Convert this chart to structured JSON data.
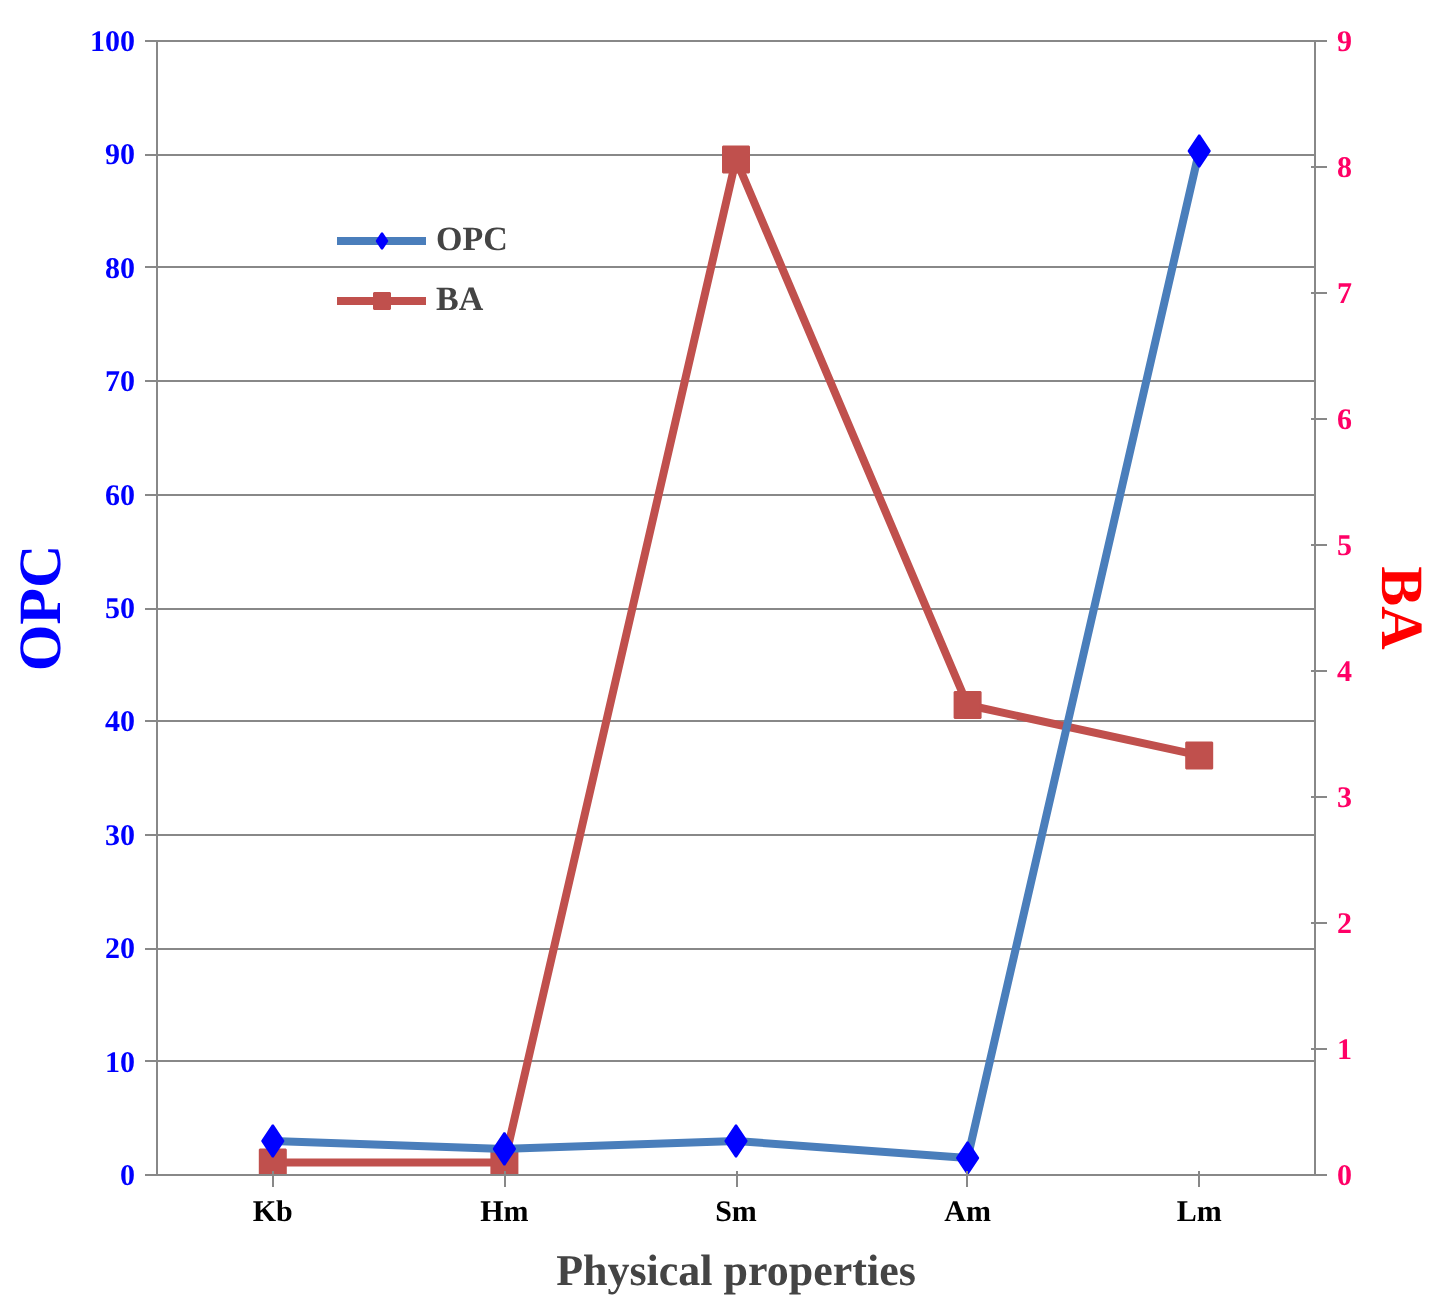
{
  "chart_data": {
    "type": "line",
    "xlabel": "Physical properties",
    "ylabel": "OPC",
    "y2label": "BA",
    "categories": [
      "Kb",
      "Hm",
      "Sm",
      "Am",
      "Lm"
    ],
    "series": [
      {
        "name": "OPC",
        "color": "#4a7ebb",
        "marker": "diamond",
        "values": [
          3.0,
          2.3,
          3.0,
          1.5,
          90.3
        ]
      },
      {
        "name": "BA",
        "color": "#c0504d",
        "marker": "square",
        "axis": "y2",
        "values": [
          0.1,
          0.1,
          8.06,
          3.73,
          3.33
        ]
      }
    ],
    "ylim": [
      0,
      100
    ],
    "yticks": [
      0,
      10,
      20,
      30,
      40,
      50,
      60,
      70,
      80,
      90,
      100
    ],
    "y2lim": [
      0,
      9
    ],
    "y2ticks": [
      0,
      1,
      2,
      3,
      4,
      5,
      6,
      7,
      8,
      9
    ],
    "grid": "y",
    "legend": "top left"
  }
}
